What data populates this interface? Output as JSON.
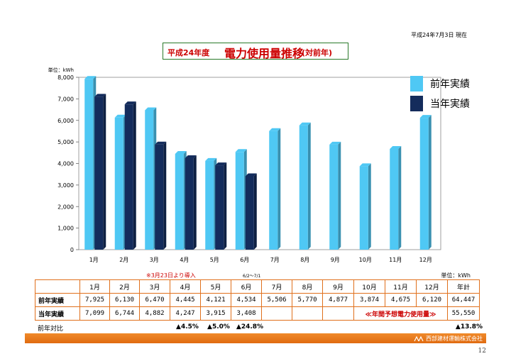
{
  "date_label": "平成24年7月3日 現在",
  "title": {
    "prefix": "平成24年度",
    "main": "電力使用量推移",
    "suffix": "(対前年)"
  },
  "chart_data": {
    "type": "bar",
    "title": "電力使用量推移(対前年)",
    "ylabel": "単位：kWh",
    "ylim": [
      0,
      8000
    ],
    "yticks": [
      "0",
      "1,000",
      "2,000",
      "3,000",
      "4,000",
      "5,000",
      "6,000",
      "7,000",
      "8,000"
    ],
    "categories": [
      "1月",
      "2月",
      "3月",
      "4月",
      "5月",
      "6月",
      "7月",
      "8月",
      "9月",
      "10月",
      "11月",
      "12月"
    ],
    "series": [
      {
        "name": "前年実績",
        "color": "#4fc8f4",
        "values": [
          7925,
          6130,
          6470,
          4445,
          4121,
          4534,
          5506,
          5770,
          4877,
          3874,
          4675,
          6120
        ]
      },
      {
        "name": "当年実績",
        "color": "#142c5c",
        "values": [
          7099,
          6744,
          4882,
          4247,
          3915,
          3408,
          null,
          null,
          null,
          null,
          null,
          null
        ]
      }
    ],
    "legend_position": "top-right"
  },
  "legend": [
    {
      "label": "前年実績",
      "color": "#4fc8f4"
    },
    {
      "label": "当年実績",
      "color": "#142c5c"
    }
  ],
  "notes": {
    "intro": "※3月23日より導入",
    "period": "6/2～7/1",
    "unit": "単位：kWh"
  },
  "table": {
    "headers": [
      "1月",
      "2月",
      "3月",
      "4月",
      "5月",
      "6月",
      "7月",
      "8月",
      "9月",
      "10月",
      "11月",
      "12月",
      "年計"
    ],
    "prev_label": "前年実績",
    "prev": [
      "7,925",
      "6,130",
      "6,470",
      "4,445",
      "4,121",
      "4,534",
      "5,506",
      "5,770",
      "4,877",
      "3,874",
      "4,675",
      "6,120",
      "64,447"
    ],
    "curr_label": "当年実績",
    "curr": [
      "7,099",
      "6,744",
      "4,882",
      "4,247",
      "3,915",
      "3,408",
      "55,550"
    ],
    "forecast_label": "≪年間予想電力使用量≫"
  },
  "yoy": {
    "label": "前年対比",
    "apr": "▲4.5%",
    "may": "▲5.0%",
    "jun": "▲24.8%",
    "total": "▲13.8%"
  },
  "footer": {
    "company": "西部建材運輸株式会社"
  },
  "page_number": "12"
}
